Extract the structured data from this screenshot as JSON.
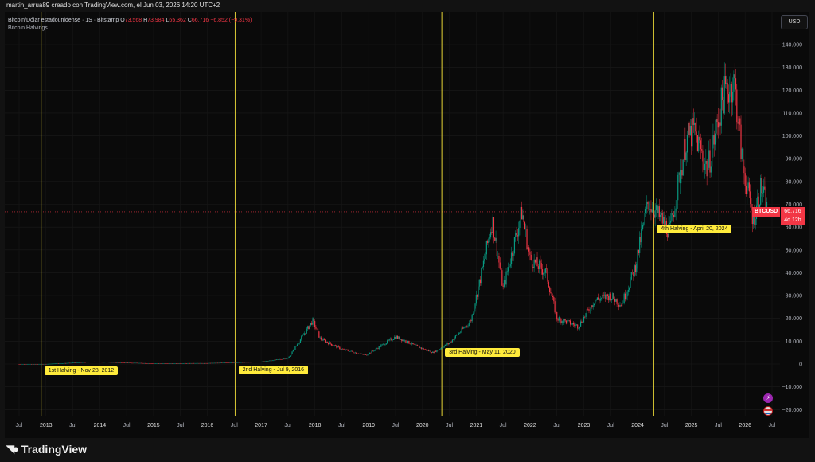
{
  "top_title": "martin_arrua89 creado con TradingView.com, el Jun 03, 2026 14:20 UTC+2",
  "symbol_header": {
    "name": "Bitcoin/Dólar estadounidense · 1S · Bitstamp",
    "o_label": "O",
    "o": "73.568",
    "h_label": "H",
    "h": "73.984",
    "l_label": "L",
    "l": "65.362",
    "c_label": "C",
    "c": "66.716",
    "change": "−6.852 (−9,31%)",
    "indicator": "Bitcoin Halvings"
  },
  "currency_button": "USD",
  "price_tag": {
    "symbol": "BTCUSD",
    "price": "66.716",
    "countdown": "4d 12h",
    "color": "#f23645"
  },
  "halving_color": "#ffeb3b",
  "up_color": "#089981",
  "down_color": "#f23645",
  "brand": "TradingView",
  "chart_data": {
    "type": "candlestick",
    "x_axis_labels": [
      "Jul",
      "2013",
      "Jul",
      "2014",
      "Jul",
      "2015",
      "Jul",
      "2016",
      "Jul",
      "2017",
      "Jul",
      "2018",
      "Jul",
      "2019",
      "Jul",
      "2020",
      "Jul",
      "2021",
      "Jul",
      "2022",
      "Jul",
      "2023",
      "Jul",
      "2024",
      "Jul",
      "2025",
      "Jul",
      "2026",
      "Jul"
    ],
    "y_ticks": [
      140000,
      130000,
      120000,
      110000,
      100000,
      90000,
      80000,
      70000,
      60000,
      50000,
      40000,
      30000,
      20000,
      10000,
      0,
      -10000,
      -20000
    ],
    "y_tick_labels": [
      "140.000",
      "130.000",
      "120.000",
      "110.000",
      "100.000",
      "90.000",
      "80.000",
      "70.000",
      "60.000",
      "50.000",
      "40.000",
      "30.000",
      "20.000",
      "10.000",
      "0",
      "−10.000",
      "−20.000"
    ],
    "ylim": [
      -23000,
      148000
    ],
    "last_price": 66716,
    "series": [
      {
        "date": "2012.5",
        "close": 7
      },
      {
        "date": "2013.0",
        "close": 13
      },
      {
        "date": "2013.9",
        "close": 1000
      },
      {
        "date": "2014.5",
        "close": 600
      },
      {
        "date": "2015.0",
        "close": 250
      },
      {
        "date": "2016.0",
        "close": 400
      },
      {
        "date": "2016.5",
        "close": 650
      },
      {
        "date": "2017.0",
        "close": 1000
      },
      {
        "date": "2017.5",
        "close": 2500
      },
      {
        "date": "2017.96",
        "close": 19000
      },
      {
        "date": "2018.1",
        "close": 11000
      },
      {
        "date": "2018.5",
        "close": 6500
      },
      {
        "date": "2018.95",
        "close": 3800
      },
      {
        "date": "2019.5",
        "close": 12000
      },
      {
        "date": "2019.95",
        "close": 7200
      },
      {
        "date": "2020.2",
        "close": 5000
      },
      {
        "date": "2020.5",
        "close": 9200
      },
      {
        "date": "2020.9",
        "close": 19000
      },
      {
        "date": "2021.1",
        "close": 40000
      },
      {
        "date": "2021.3",
        "close": 63000
      },
      {
        "date": "2021.5",
        "close": 33000
      },
      {
        "date": "2021.85",
        "close": 67000
      },
      {
        "date": "2022.0",
        "close": 46000
      },
      {
        "date": "2022.3",
        "close": 40000
      },
      {
        "date": "2022.5",
        "close": 20000
      },
      {
        "date": "2022.9",
        "close": 16500
      },
      {
        "date": "2023.2",
        "close": 28000
      },
      {
        "date": "2023.5",
        "close": 30000
      },
      {
        "date": "2023.7",
        "close": 26000
      },
      {
        "date": "2023.95",
        "close": 42000
      },
      {
        "date": "2024.2",
        "close": 71000
      },
      {
        "date": "2024.6",
        "close": 58000
      },
      {
        "date": "2024.9",
        "close": 98000
      },
      {
        "date": "2025.05",
        "close": 102000
      },
      {
        "date": "2025.3",
        "close": 85000
      },
      {
        "date": "2025.6",
        "close": 118000
      },
      {
        "date": "2025.8",
        "close": 124000
      },
      {
        "date": "2025.95",
        "close": 88000
      },
      {
        "date": "2026.15",
        "close": 63000
      },
      {
        "date": "2026.3",
        "close": 78000
      },
      {
        "date": "2026.42",
        "close": 66716
      }
    ],
    "halvings": [
      {
        "label": "1st Halving - Nov 28, 2012",
        "date": "2012.91"
      },
      {
        "label": "2nd Halving - Jul 9, 2016",
        "date": "2016.52"
      },
      {
        "label": "3rd Halving - May 11, 2020",
        "date": "2020.36"
      },
      {
        "label": "4th Halving - April 20, 2024",
        "date": "2024.3"
      }
    ]
  }
}
